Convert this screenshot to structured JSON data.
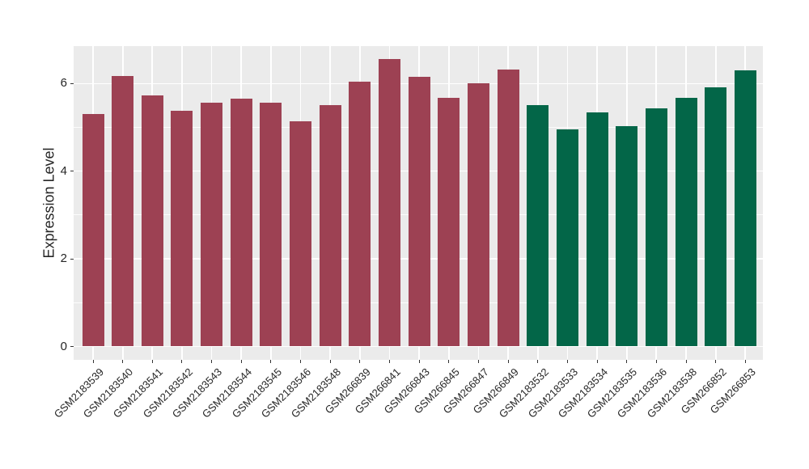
{
  "chart_data": {
    "type": "bar",
    "title": "",
    "xlabel": "",
    "ylabel": "Expression Level",
    "ylim": [
      0,
      6.87
    ],
    "yticks": [
      0,
      2,
      4,
      6
    ],
    "minor_gridlines": [
      1,
      3,
      5
    ],
    "grid": "on",
    "legend_position": "none",
    "categories": [
      "GSM2183539",
      "GSM2183540",
      "GSM2183541",
      "GSM2183542",
      "GSM2183543",
      "GSM2183544",
      "GSM2183545",
      "GSM2183546",
      "GSM2183548",
      "GSM266839",
      "GSM266841",
      "GSM266843",
      "GSM266845",
      "GSM266847",
      "GSM266849",
      "GSM2183532",
      "GSM2183533",
      "GSM2183534",
      "GSM2183535",
      "GSM2183536",
      "GSM2183538",
      "GSM266852",
      "GSM266853"
    ],
    "values": [
      5.31,
      6.17,
      5.73,
      5.38,
      5.56,
      5.66,
      5.56,
      5.14,
      5.51,
      6.04,
      6.55,
      6.15,
      5.68,
      6.01,
      6.32,
      5.5,
      4.95,
      5.35,
      5.02,
      5.43,
      5.67,
      5.91,
      6.3
    ],
    "groups": [
      "group1",
      "group1",
      "group1",
      "group1",
      "group1",
      "group1",
      "group1",
      "group1",
      "group1",
      "group1",
      "group1",
      "group1",
      "group1",
      "group1",
      "group1",
      "group2",
      "group2",
      "group2",
      "group2",
      "group2",
      "group2",
      "group2",
      "group2"
    ],
    "group_colors": {
      "group1": "#9D4153",
      "group2": "#036648"
    }
  },
  "styles": {
    "panel_bg": "#EBEBEB",
    "grid_color": "#FFFFFF",
    "axis_text_color": "#262626",
    "tick_mark_color": "#333333"
  }
}
